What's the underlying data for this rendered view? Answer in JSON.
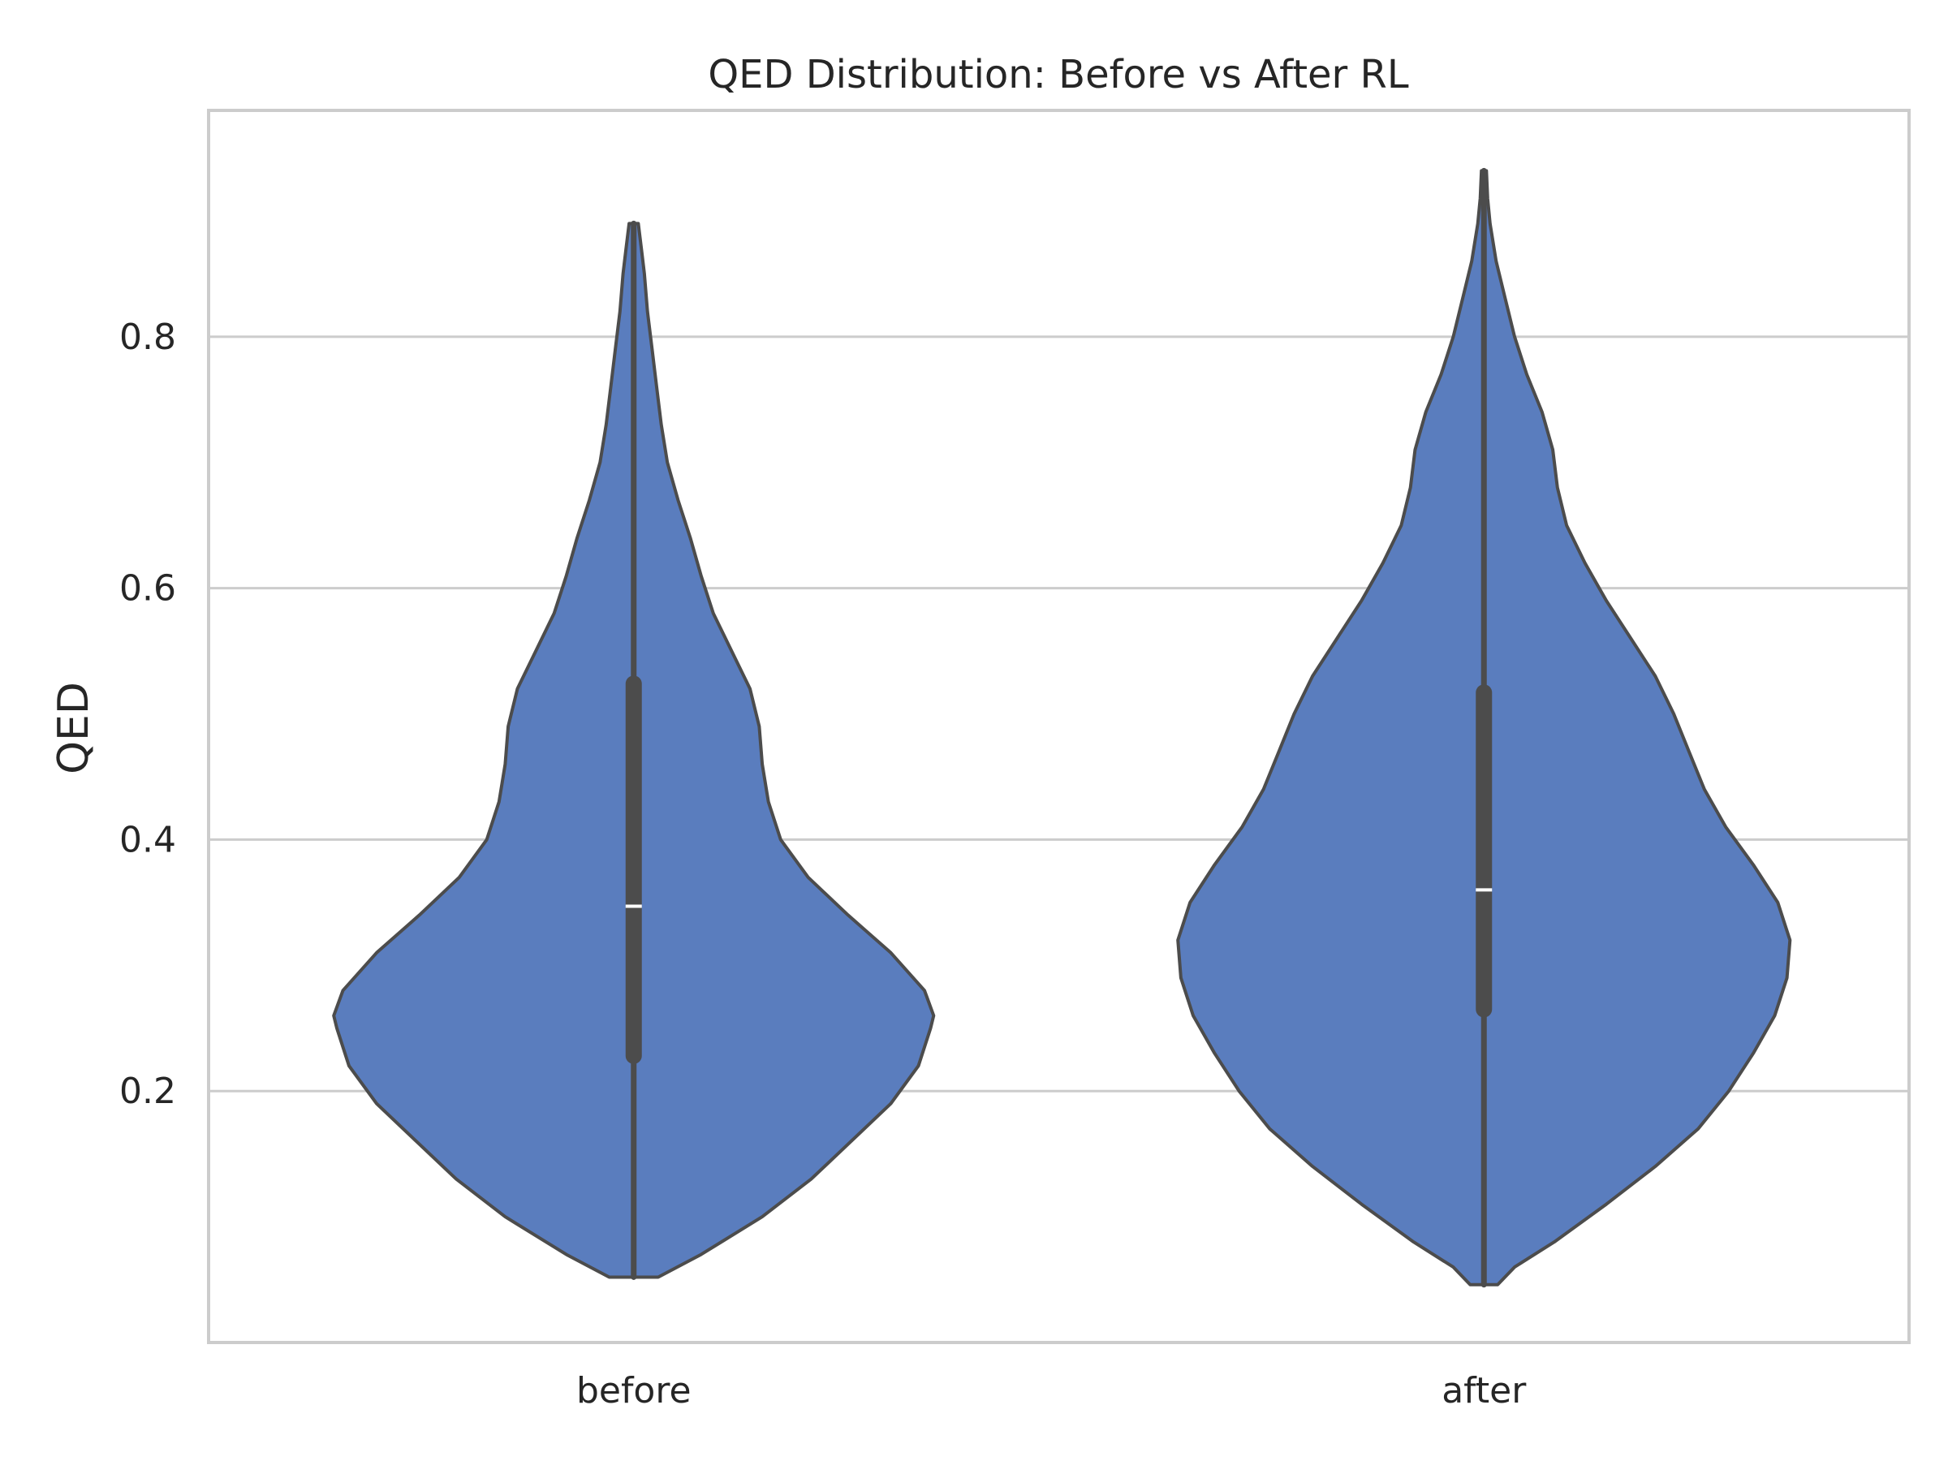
{
  "chart_data": {
    "type": "violin",
    "title": "QED Distribution: Before vs After RL",
    "xlabel": "",
    "ylabel": "QED",
    "ylim": [
      0.0,
      0.98
    ],
    "yticks": [
      0.2,
      0.4,
      0.6,
      0.8
    ],
    "ytick_labels": [
      "0.2",
      "0.4",
      "0.6",
      "0.8"
    ],
    "grid": true,
    "fill_color": "#5a7dbe",
    "edge_color": "#4c4c4c",
    "categories": [
      "before",
      "after"
    ],
    "series": [
      {
        "category": "before",
        "min": 0.052,
        "q1": 0.228,
        "median": 0.347,
        "q3": 0.524,
        "max": 0.89,
        "density": [
          [
            0.052,
            0.08
          ],
          [
            0.07,
            0.22
          ],
          [
            0.1,
            0.42
          ],
          [
            0.13,
            0.58
          ],
          [
            0.16,
            0.71
          ],
          [
            0.19,
            0.84
          ],
          [
            0.22,
            0.93
          ],
          [
            0.25,
            0.97
          ],
          [
            0.26,
            0.98
          ],
          [
            0.28,
            0.95
          ],
          [
            0.31,
            0.84
          ],
          [
            0.34,
            0.7
          ],
          [
            0.37,
            0.57
          ],
          [
            0.4,
            0.48
          ],
          [
            0.43,
            0.44
          ],
          [
            0.46,
            0.42
          ],
          [
            0.49,
            0.41
          ],
          [
            0.52,
            0.38
          ],
          [
            0.55,
            0.32
          ],
          [
            0.58,
            0.26
          ],
          [
            0.61,
            0.22
          ],
          [
            0.64,
            0.185
          ],
          [
            0.67,
            0.145
          ],
          [
            0.7,
            0.11
          ],
          [
            0.73,
            0.09
          ],
          [
            0.76,
            0.075
          ],
          [
            0.79,
            0.06
          ],
          [
            0.82,
            0.045
          ],
          [
            0.85,
            0.035
          ],
          [
            0.87,
            0.025
          ],
          [
            0.89,
            0.015
          ]
        ]
      },
      {
        "category": "after",
        "min": 0.046,
        "q1": 0.265,
        "median": 0.36,
        "q3": 0.517,
        "max": 0.932,
        "density": [
          [
            0.046,
            0.045
          ],
          [
            0.06,
            0.1
          ],
          [
            0.08,
            0.23
          ],
          [
            0.11,
            0.4
          ],
          [
            0.14,
            0.56
          ],
          [
            0.17,
            0.7
          ],
          [
            0.2,
            0.8
          ],
          [
            0.23,
            0.88
          ],
          [
            0.26,
            0.95
          ],
          [
            0.29,
            0.99
          ],
          [
            0.32,
            1.0
          ],
          [
            0.35,
            0.96
          ],
          [
            0.38,
            0.88
          ],
          [
            0.41,
            0.79
          ],
          [
            0.44,
            0.72
          ],
          [
            0.47,
            0.67
          ],
          [
            0.5,
            0.62
          ],
          [
            0.53,
            0.56
          ],
          [
            0.56,
            0.48
          ],
          [
            0.59,
            0.4
          ],
          [
            0.62,
            0.33
          ],
          [
            0.65,
            0.27
          ],
          [
            0.68,
            0.24
          ],
          [
            0.71,
            0.225
          ],
          [
            0.74,
            0.19
          ],
          [
            0.77,
            0.14
          ],
          [
            0.8,
            0.1
          ],
          [
            0.83,
            0.07
          ],
          [
            0.86,
            0.04
          ],
          [
            0.89,
            0.02
          ],
          [
            0.91,
            0.012
          ],
          [
            0.932,
            0.008
          ]
        ]
      }
    ]
  }
}
